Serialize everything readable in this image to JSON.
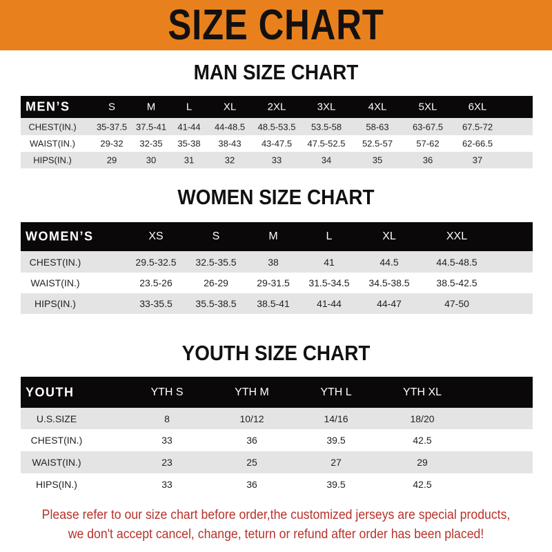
{
  "banner": {
    "title": "SIZE CHART",
    "color": "#e8811d"
  },
  "men": {
    "title": "MAN SIZE CHART",
    "header": "MEN’S",
    "sizes": [
      "S",
      "M",
      "L",
      "XL",
      "2XL",
      "3XL",
      "4XL",
      "5XL",
      "6XL"
    ],
    "rows": [
      {
        "label": "CHEST(IN.)",
        "values": [
          "35-37.5",
          "37.5-41",
          "41-44",
          "44-48.5",
          "48.5-53.5",
          "53.5-58",
          "58-63",
          "63-67.5",
          "67.5-72"
        ]
      },
      {
        "label": "WAIST(IN.)",
        "values": [
          "29-32",
          "32-35",
          "35-38",
          "38-43",
          "43-47.5",
          "47.5-52.5",
          "52.5-57",
          "57-62",
          "62-66.5"
        ]
      },
      {
        "label": "HIPS(IN.)",
        "values": [
          "29",
          "30",
          "31",
          "32",
          "33",
          "34",
          "35",
          "36",
          "37"
        ]
      }
    ]
  },
  "women": {
    "title": "WOMEN SIZE CHART",
    "header": "WOMEN’S",
    "sizes": [
      "XS",
      "S",
      "M",
      "L",
      "XL",
      "XXL"
    ],
    "rows": [
      {
        "label": "CHEST(IN.)",
        "values": [
          "29.5-32.5",
          "32.5-35.5",
          "38",
          "41",
          "44.5",
          "44.5-48.5"
        ]
      },
      {
        "label": "WAIST(IN.)",
        "values": [
          "23.5-26",
          "26-29",
          "29-31.5",
          "31.5-34.5",
          "34.5-38.5",
          "38.5-42.5"
        ]
      },
      {
        "label": "HIPS(IN.)",
        "values": [
          "33-35.5",
          "35.5-38.5",
          "38.5-41",
          "41-44",
          "44-47",
          "47-50"
        ]
      }
    ]
  },
  "youth": {
    "title": "YOUTH SIZE CHART",
    "header": "YOUTH",
    "sizes": [
      "YTH S",
      "YTH M",
      "YTH L",
      "YTH XL"
    ],
    "rows": [
      {
        "label": "U.S.SIZE",
        "values": [
          "8",
          "10/12",
          "14/16",
          "18/20"
        ]
      },
      {
        "label": "CHEST(IN.)",
        "values": [
          "33",
          "36",
          "39.5",
          "42.5"
        ]
      },
      {
        "label": "WAIST(IN.)",
        "values": [
          "23",
          "25",
          "27",
          "29"
        ]
      },
      {
        "label": "HIPS(IN.)",
        "values": [
          "33",
          "36",
          "39.5",
          "42.5"
        ]
      }
    ]
  },
  "notice": {
    "line1": "Please refer to our size chart before order,the customized jerseys are special products,",
    "line2": "we don't accept cancel, change, teturn or refund after order has been placed!",
    "color": "#b8322a"
  }
}
